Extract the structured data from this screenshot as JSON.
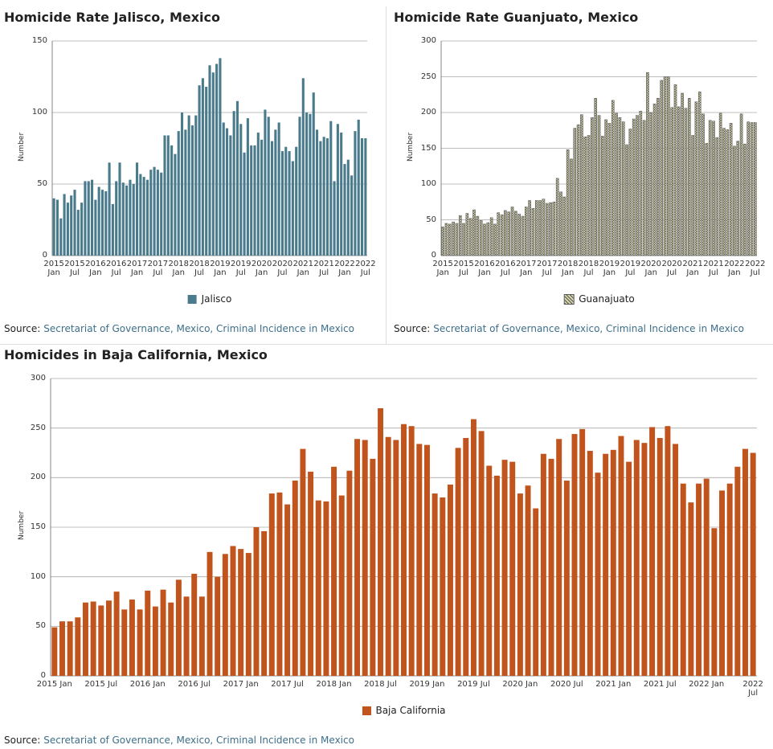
{
  "chart_data": [
    {
      "type": "bar",
      "title": "Homicide Rate Jalisco, Mexico",
      "ylabel": "Number",
      "categories": [
        "2015 Jan",
        null,
        null,
        null,
        null,
        null,
        "2015 Jul",
        null,
        null,
        null,
        null,
        null,
        "2016 Jan",
        null,
        null,
        null,
        null,
        null,
        "2016 Jul",
        null,
        null,
        null,
        null,
        null,
        "2017 Jan",
        null,
        null,
        null,
        null,
        null,
        "2017 Jul",
        null,
        null,
        null,
        null,
        null,
        "2018 Jan",
        null,
        null,
        null,
        null,
        null,
        "2018 Jul",
        null,
        null,
        null,
        null,
        null,
        "2019 Jan",
        null,
        null,
        null,
        null,
        null,
        "2019 Jul",
        null,
        null,
        null,
        null,
        null,
        "2020 Jan",
        null,
        null,
        null,
        null,
        null,
        "2020 Jul",
        null,
        null,
        null,
        null,
        null,
        "2021 Jan",
        null,
        null,
        null,
        null,
        null,
        "2021 Jul",
        null,
        null,
        null,
        null,
        null,
        "2022 Jan",
        null,
        null,
        null,
        null,
        null,
        "2022 Jul"
      ],
      "series": [
        {
          "name": "Jalisco",
          "color": "#4a7b8d",
          "values": [
            40,
            39,
            26,
            43,
            37,
            42,
            46,
            32,
            37,
            52,
            52,
            53,
            39,
            48,
            46,
            45,
            65,
            36,
            52,
            65,
            51,
            49,
            53,
            50,
            65,
            57,
            55,
            53,
            60,
            62,
            60,
            58,
            84,
            84,
            77,
            71,
            87,
            100,
            88,
            98,
            91,
            98,
            119,
            124,
            118,
            133,
            128,
            134,
            138,
            93,
            89,
            84,
            101,
            108,
            92,
            72,
            96,
            77,
            77,
            86,
            81,
            102,
            97,
            80,
            88,
            93,
            73,
            76,
            73,
            66,
            76,
            97,
            124,
            100,
            99,
            114,
            88,
            80,
            83,
            82,
            94,
            52,
            92,
            86,
            64,
            67,
            56,
            87,
            95,
            82,
            82
          ]
        }
      ],
      "ylim": [
        0,
        150
      ],
      "yticks": [
        0,
        50,
        100,
        150
      ],
      "grid": true,
      "source_label": "Source:",
      "source_link": "Secretariat of Governance, Mexico, Criminal Incidence in Mexico"
    },
    {
      "type": "bar",
      "title": "Homicide Rate Guanjuato, Mexico",
      "ylabel": "Number",
      "categories": [
        "2015 Jan",
        null,
        null,
        null,
        null,
        null,
        "2015 Jul",
        null,
        null,
        null,
        null,
        null,
        "2016 Jan",
        null,
        null,
        null,
        null,
        null,
        "2016 Jul",
        null,
        null,
        null,
        null,
        null,
        "2017 Jan",
        null,
        null,
        null,
        null,
        null,
        "2017 Jul",
        null,
        null,
        null,
        null,
        null,
        "2018 Jan",
        null,
        null,
        null,
        null,
        null,
        "2018 Jul",
        null,
        null,
        null,
        null,
        null,
        "2019 Jan",
        null,
        null,
        null,
        null,
        null,
        "2019 Jul",
        null,
        null,
        null,
        null,
        null,
        "2020 Jan",
        null,
        null,
        null,
        null,
        null,
        "2020 Jul",
        null,
        null,
        null,
        null,
        null,
        "2021 Jan",
        null,
        null,
        null,
        null,
        null,
        "2021 Jul",
        null,
        null,
        null,
        null,
        null,
        "2022 Jan",
        null,
        null,
        null,
        null,
        null,
        "2022 Jul"
      ],
      "series": [
        {
          "name": "Guanajuato",
          "color": "#d9d6a8",
          "pattern": "crosshatch",
          "values": [
            40,
            45,
            44,
            47,
            45,
            56,
            45,
            59,
            52,
            64,
            55,
            49,
            44,
            46,
            53,
            44,
            60,
            57,
            63,
            61,
            68,
            62,
            58,
            55,
            68,
            77,
            66,
            77,
            77,
            79,
            73,
            74,
            75,
            108,
            89,
            82,
            148,
            135,
            178,
            183,
            197,
            166,
            168,
            193,
            220,
            196,
            167,
            190,
            185,
            217,
            199,
            193,
            187,
            155,
            177,
            191,
            196,
            202,
            189,
            256,
            200,
            212,
            220,
            245,
            250,
            250,
            207,
            239,
            208,
            227,
            206,
            220,
            168,
            215,
            229,
            198,
            157,
            189,
            188,
            165,
            199,
            178,
            176,
            185,
            153,
            160,
            198,
            156,
            187,
            186,
            186
          ]
        }
      ],
      "ylim": [
        0,
        300
      ],
      "yticks": [
        0,
        50,
        100,
        150,
        200,
        250,
        300
      ],
      "grid": true,
      "source_label": "Source:",
      "source_link": "Secretariat of Governance, Mexico, Criminal Incidence in Mexico"
    },
    {
      "type": "bar",
      "title": "Homicides in Baja California, Mexico",
      "ylabel": "Number",
      "categories": [
        "2015 Jan",
        null,
        null,
        null,
        null,
        null,
        "2015 Jul",
        null,
        null,
        null,
        null,
        null,
        "2016 Jan",
        null,
        null,
        null,
        null,
        null,
        "2016 Jul",
        null,
        null,
        null,
        null,
        null,
        "2017 Jan",
        null,
        null,
        null,
        null,
        null,
        "2017 Jul",
        null,
        null,
        null,
        null,
        null,
        "2018 Jan",
        null,
        null,
        null,
        null,
        null,
        "2018 Jul",
        null,
        null,
        null,
        null,
        null,
        "2019 Jan",
        null,
        null,
        null,
        null,
        null,
        "2019 Jul",
        null,
        null,
        null,
        null,
        null,
        "2020 Jan",
        null,
        null,
        null,
        null,
        null,
        "2020 Jul",
        null,
        null,
        null,
        null,
        null,
        "2021 Jan",
        null,
        null,
        null,
        null,
        null,
        "2021 Jul",
        null,
        null,
        null,
        null,
        null,
        "2022 Jan",
        null,
        null,
        null,
        null,
        null,
        "2022 Jul"
      ],
      "series": [
        {
          "name": "Baja California",
          "color": "#c0541c",
          "values": [
            49,
            55,
            55,
            59,
            74,
            75,
            71,
            76,
            85,
            67,
            77,
            67,
            86,
            70,
            87,
            74,
            97,
            80,
            103,
            80,
            125,
            100,
            123,
            131,
            128,
            124,
            150,
            146,
            184,
            185,
            173,
            197,
            229,
            206,
            177,
            176,
            211,
            182,
            207,
            239,
            238,
            219,
            270,
            241,
            238,
            254,
            252,
            234,
            233,
            184,
            180,
            193,
            230,
            240,
            259,
            247,
            212,
            202,
            218,
            216,
            184,
            192,
            169,
            224,
            219,
            239,
            197,
            244,
            249,
            227,
            205,
            224,
            228,
            242,
            216,
            238,
            235,
            251,
            240,
            252,
            234,
            194,
            175,
            194,
            199,
            149,
            187,
            194,
            211,
            229,
            225
          ]
        }
      ],
      "ylim": [
        0,
        300
      ],
      "yticks": [
        0,
        50,
        100,
        150,
        200,
        250,
        300
      ],
      "grid": true,
      "source_label": "Source:",
      "source_link": "Secretariat of Governance, Mexico, Criminal Incidence in Mexico"
    }
  ]
}
